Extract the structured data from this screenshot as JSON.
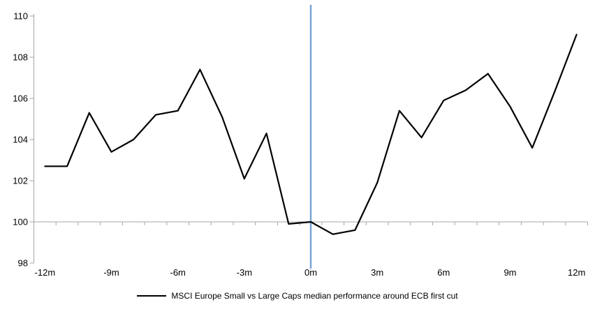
{
  "chart_data": {
    "type": "line",
    "title": "",
    "xlabel": "",
    "ylabel": "",
    "x_months": [
      -12,
      -11,
      -10,
      -9,
      -8,
      -7,
      -6,
      -5,
      -4,
      -3,
      -2,
      -1,
      0,
      1,
      2,
      3,
      4,
      5,
      6,
      7,
      8,
      9,
      10,
      11,
      12
    ],
    "x_tick_labels": [
      "-12m",
      "-9m",
      "-6m",
      "-3m",
      "0m",
      "3m",
      "6m",
      "9m",
      "12m"
    ],
    "x_tick_months": [
      -12,
      -9,
      -6,
      -3,
      0,
      3,
      6,
      9,
      12
    ],
    "series": [
      {
        "name": "MSCI Europe Small vs Large Caps median performance around ECB first cut",
        "values": [
          102.7,
          102.7,
          105.3,
          103.4,
          104.0,
          105.2,
          105.4,
          107.4,
          105.1,
          102.1,
          104.3,
          99.9,
          100.0,
          99.4,
          99.6,
          101.9,
          105.4,
          104.1,
          105.9,
          106.4,
          107.2,
          105.6,
          103.6,
          106.3,
          109.1
        ],
        "color": "#000000"
      }
    ],
    "ylim": [
      98,
      110
    ],
    "y_ticks": [
      98,
      100,
      102,
      104,
      106,
      108,
      110
    ],
    "baseline_value": 100,
    "event_line_month": 0,
    "grid": false,
    "legend_position": "bottom-center",
    "colors": {
      "series_line": "#000000",
      "event_line": "#76a5d6",
      "axis": "#a6a6a6",
      "tick_label": "#000000"
    }
  },
  "legend": {
    "label": "MSCI Europe Small vs Large Caps median performance around ECB first cut"
  }
}
